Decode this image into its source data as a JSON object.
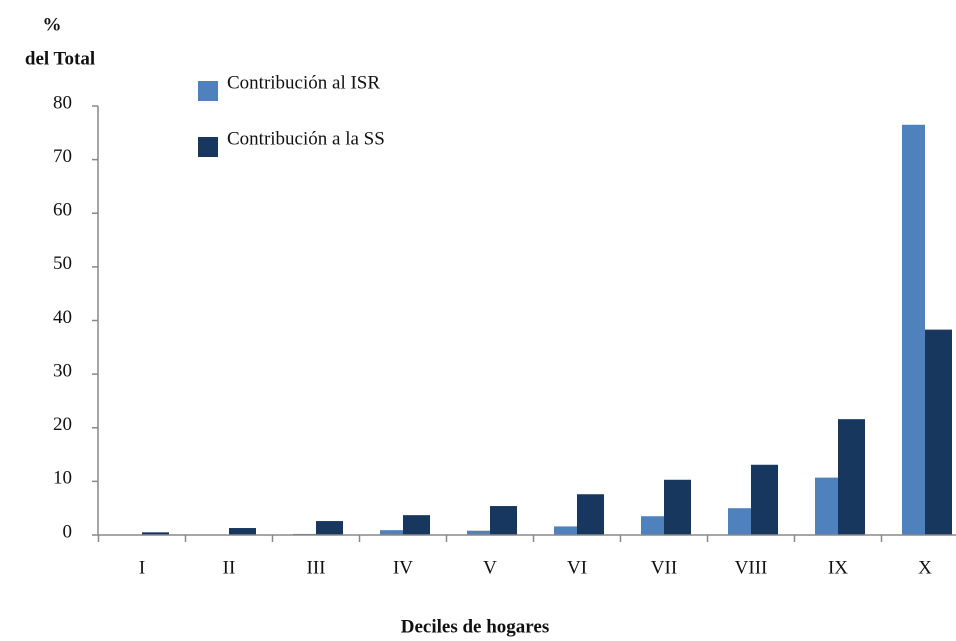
{
  "chart_data": {
    "type": "bar",
    "y_label_lines": [
      "%",
      "del Total"
    ],
    "x_label": "Deciles de hogares",
    "categories": [
      "I",
      "II",
      "III",
      "IV",
      "V",
      "VI",
      "VII",
      "VIII",
      "IX",
      "X"
    ],
    "series": [
      {
        "name": "Contribución al ISR",
        "color": "#4f81bd",
        "values": [
          0,
          0,
          0.2,
          0.9,
          0.8,
          1.6,
          3.5,
          5.0,
          10.7,
          76.5
        ]
      },
      {
        "name": "Contribución a la SS",
        "color": "#17375e",
        "values": [
          0.5,
          1.3,
          2.6,
          3.7,
          5.4,
          7.6,
          10.3,
          13.1,
          21.6,
          38.3
        ]
      }
    ],
    "ylim": [
      0,
      80
    ],
    "yticks": [
      0,
      10,
      20,
      30,
      40,
      50,
      60,
      70,
      80
    ],
    "grid": false,
    "legend": "top-left"
  }
}
